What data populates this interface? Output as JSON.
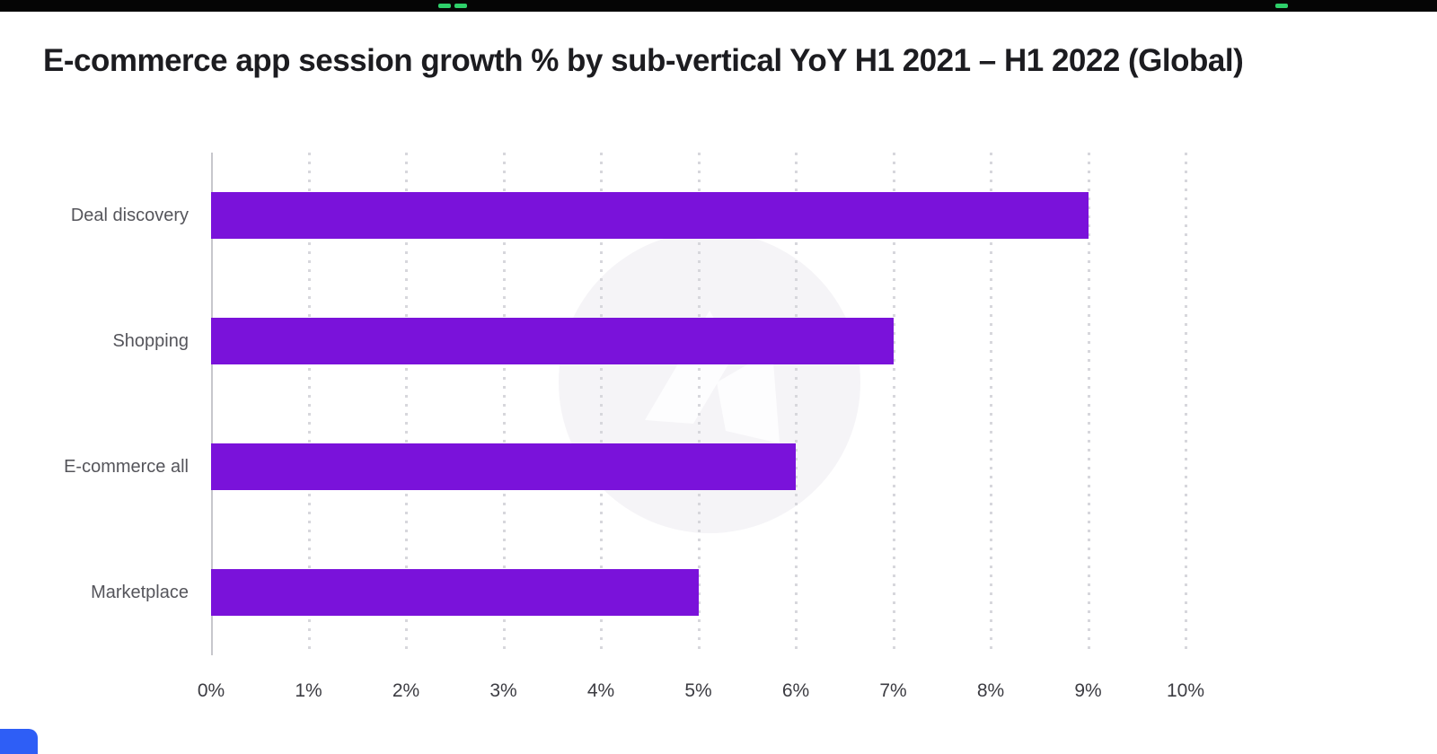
{
  "top_bar": {
    "color": "#050505",
    "mark_color": "#2ecf6a",
    "mark_positions": [
      488,
      506,
      1420
    ]
  },
  "chart_data": {
    "type": "bar",
    "orientation": "horizontal",
    "title": "E-commerce app session growth % by sub-vertical YoY H1 2021 – H1 2022 (Global)",
    "categories": [
      "Deal discovery",
      "Shopping",
      "E-commerce all",
      "Marketplace"
    ],
    "values": [
      9,
      7,
      6,
      5
    ],
    "unit": "%",
    "xlabel": "",
    "ylabel": "",
    "xlim": [
      0,
      10
    ],
    "x_ticks": [
      "0%",
      "1%",
      "2%",
      "3%",
      "4%",
      "5%",
      "6%",
      "7%",
      "8%",
      "9%",
      "10%"
    ],
    "bar_color": "#7a12da",
    "grid": "dotted-vertical",
    "legend": "none",
    "watermark": "appsflyer-logo-circle",
    "watermark_color": "#f5f4f7"
  }
}
